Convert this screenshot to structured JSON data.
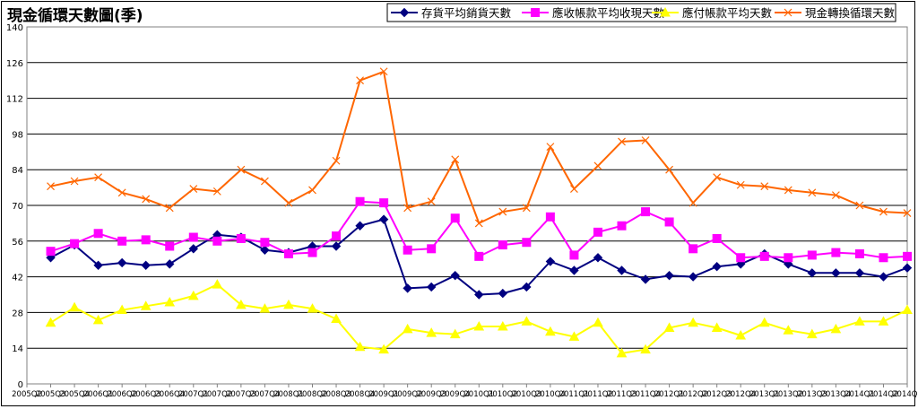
{
  "chart_data": {
    "type": "line",
    "title": "現金循環天數圖(季)",
    "xlabel": "",
    "ylabel": "",
    "ylim": [
      0,
      140
    ],
    "yticks": [
      0,
      14,
      28,
      42,
      56,
      70,
      84,
      98,
      112,
      126,
      140
    ],
    "grid": true,
    "legend_position": "top-right",
    "categories": [
      "2005Q2",
      "2005Q3",
      "2005Q4",
      "2006Q1",
      "2006Q2",
      "2006Q3",
      "2006Q4",
      "2007Q1",
      "2007Q2",
      "2007Q3",
      "2007Q4",
      "2008Q1",
      "2008Q2",
      "2008Q3",
      "2008Q4",
      "2009Q1",
      "2009Q2",
      "2009Q3",
      "2009Q4",
      "2010Q1",
      "2010Q2",
      "2010Q3",
      "2010Q4",
      "2011Q1",
      "2011Q2",
      "2011Q3",
      "2011Q4",
      "2012Q1",
      "2012Q2",
      "2012Q3",
      "2012Q4",
      "2013Q1",
      "2013Q2",
      "2013Q3",
      "2013Q4",
      "2014Q1",
      "2014Q2",
      "2014Q3"
    ],
    "series": [
      {
        "name": "存貨平均銷貨天數",
        "color": "#000080",
        "marker": "diamond",
        "values": [
          null,
          49.5,
          54.5,
          46.5,
          47.5,
          46.5,
          47,
          53,
          58.5,
          57.5,
          52.5,
          51.5,
          54,
          54,
          62,
          64.5,
          37.5,
          38,
          42.5,
          35,
          35.5,
          38,
          48,
          44.5,
          49.5,
          44.5,
          41,
          42.5,
          42,
          46,
          47,
          51,
          47,
          43.5,
          43.5,
          43.5,
          42,
          45.5
        ]
      },
      {
        "name": "應收帳款平均收現天數",
        "color": "#ff00ff",
        "marker": "square",
        "values": [
          null,
          52,
          55,
          59,
          56,
          56.5,
          54,
          57.5,
          56,
          57,
          55.5,
          51,
          51.5,
          58,
          71.5,
          71,
          52.5,
          53,
          65,
          50,
          54.5,
          55.5,
          65.5,
          50.5,
          59.5,
          62,
          67.5,
          63.5,
          53,
          57,
          49.5,
          50,
          49.5,
          50.5,
          51.5,
          51,
          49.5,
          50
        ]
      },
      {
        "name": "應付帳款平均天數",
        "color": "#ffff00",
        "marker": "triangle",
        "values": [
          null,
          24,
          30,
          25,
          29,
          30.5,
          32,
          34.5,
          39,
          31,
          29.5,
          31,
          29.5,
          25.5,
          14.5,
          13.5,
          21.5,
          20,
          19.5,
          22.5,
          22.5,
          24.5,
          20.5,
          18.5,
          24,
          12,
          13.5,
          22,
          24,
          22,
          19,
          24,
          21,
          19.5,
          21.5,
          24.5,
          24.5,
          29
        ]
      },
      {
        "name": "現金轉換循環天數",
        "color": "#ff6600",
        "marker": "x",
        "values": [
          null,
          77.5,
          79.5,
          81,
          75,
          72.5,
          69,
          76.5,
          75.5,
          84,
          79.5,
          71,
          76,
          87.5,
          119,
          122.5,
          69,
          71.5,
          88,
          63,
          67.5,
          69,
          93,
          76.5,
          85.5,
          95,
          95.5,
          84,
          71,
          81,
          78,
          77.5,
          76,
          75,
          74,
          70,
          67.5,
          67
        ]
      }
    ]
  }
}
